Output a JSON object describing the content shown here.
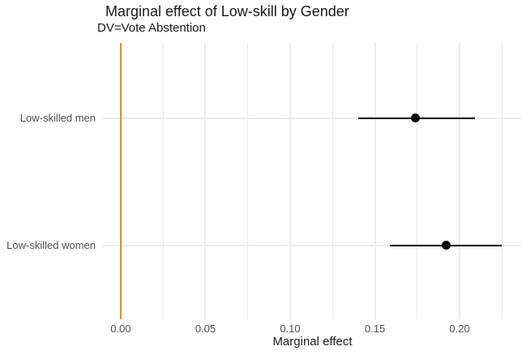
{
  "chart_data": {
    "type": "pointrange",
    "title": "Marginal effect of Low-skill by Gender",
    "subtitle": "DV=Vote Abstention",
    "xlabel": "Marginal effect",
    "ylabel": "",
    "categories": [
      "Low-skilled men",
      "Low-skilled women"
    ],
    "series": [
      {
        "label": "Low-skilled men",
        "estimate": 0.174,
        "ci_low": 0.14,
        "ci_high": 0.209
      },
      {
        "label": "Low-skilled women",
        "estimate": 0.192,
        "ci_low": 0.159,
        "ci_high": 0.225
      }
    ],
    "x_ticks": [
      {
        "value": 0.0,
        "label": "0.00"
      },
      {
        "value": 0.05,
        "label": "0.05"
      },
      {
        "value": 0.1,
        "label": "0.10"
      },
      {
        "value": 0.15,
        "label": "0.15"
      },
      {
        "value": 0.2,
        "label": "0.20"
      }
    ],
    "x_minor_gridlines": [
      0.025,
      0.075,
      0.125,
      0.175,
      0.225
    ],
    "xlim": [
      -0.0105,
      0.2368
    ],
    "reference_line": {
      "x": 0.0,
      "color": "#e0911c"
    },
    "colors": {
      "point": "#000000",
      "interval_line": "#000000",
      "gridline": "#ebebeb",
      "axis_text": "#4d4d4d",
      "title_text": "#1a1a1a",
      "background": "#ffffff"
    },
    "legend": "none",
    "grid": "on"
  }
}
